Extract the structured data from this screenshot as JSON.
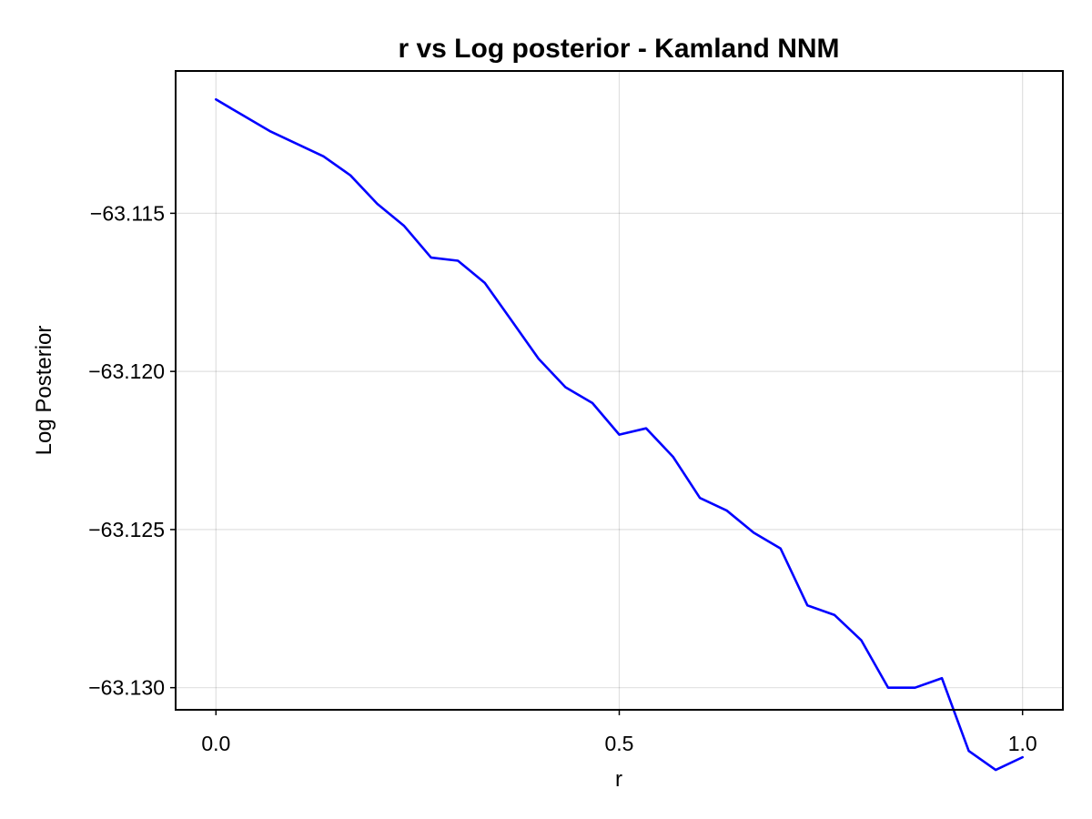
{
  "chart_data": {
    "type": "line",
    "title": "r vs Log posterior - Kamland NNM",
    "xlabel": "r",
    "ylabel": "Log Posterior",
    "xlim": [
      -0.05,
      1.05
    ],
    "ylim": [
      -63.1307,
      -63.1105
    ],
    "x_ticks": [
      0.0,
      0.5,
      1.0
    ],
    "x_tick_labels": [
      "0.0",
      "0.5",
      "1.0"
    ],
    "y_ticks": [
      -63.115,
      -63.12,
      -63.125,
      -63.13
    ],
    "y_tick_labels": [
      "−63.115",
      "−63.120",
      "−63.125",
      "−63.130"
    ],
    "grid": true,
    "legend": "none",
    "series": [
      {
        "color": "#0000ff",
        "x": [
          0.0,
          0.0333,
          0.0667,
          0.1,
          0.1333,
          0.1667,
          0.2,
          0.2333,
          0.2667,
          0.3,
          0.3333,
          0.3667,
          0.4,
          0.4333,
          0.4667,
          0.5,
          0.5333,
          0.5667,
          0.6,
          0.6333,
          0.6667,
          0.7,
          0.7333,
          0.7667,
          0.8,
          0.8333,
          0.8667,
          0.9,
          0.9333,
          0.9667,
          1.0
        ],
        "values": [
          -63.1114,
          -63.1119,
          -63.1124,
          -63.1128,
          -63.1132,
          -63.1138,
          -63.1147,
          -63.1154,
          -63.1164,
          -63.1165,
          -63.1172,
          -63.1184,
          -63.1196,
          -63.1205,
          -63.121,
          -63.122,
          -63.1218,
          -63.1227,
          -63.124,
          -63.1244,
          -63.1251,
          -63.1256,
          -63.1274,
          -63.1277,
          -63.1285,
          -63.13,
          -63.13,
          -63.1297,
          -63.132,
          -63.1326,
          -63.1322
        ]
      }
    ]
  }
}
